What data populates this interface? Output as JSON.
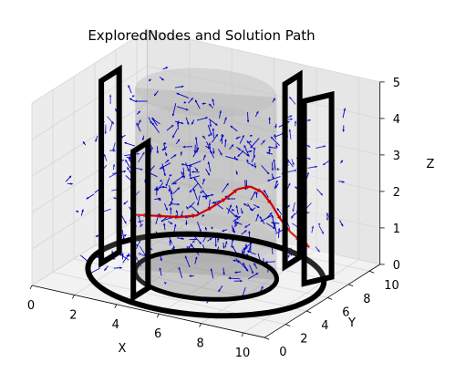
{
  "chart_data": {
    "type": "scatter3d",
    "title": "ExploredNodes and Solution Path",
    "xlabel": "X",
    "ylabel": "Y",
    "zlabel": "Z",
    "xlim": [
      0,
      11
    ],
    "ylim": [
      0,
      11
    ],
    "zlim": [
      0,
      5
    ],
    "xticks": [
      "0",
      "2",
      "4",
      "6",
      "8",
      "10"
    ],
    "yticks": [
      "0",
      "2",
      "4",
      "6",
      "8",
      "10"
    ],
    "zticks": [
      "0",
      "1",
      "2",
      "3",
      "4",
      "5"
    ],
    "grid": true,
    "colors": {
      "explored": "#0000cc",
      "solution": "#cc0000",
      "walls": "#000000",
      "cylinder": "#9a9a9a",
      "pane": "#ececec",
      "grid": "#d6d6d6"
    },
    "series": [
      {
        "kind": "quiver",
        "color_key": "explored",
        "description_free": true,
        "seed": 7,
        "count": 420,
        "x_range": [
          1.0,
          10.0
        ],
        "y_range": [
          1.0,
          10.0
        ],
        "z_range": [
          0.2,
          4.6
        ],
        "arrow_len": 0.45
      },
      {
        "kind": "quiver",
        "color_key": "solution",
        "points": [
          [
            2.0,
            5.5,
            1.2
          ],
          [
            2.7,
            5.6,
            1.25
          ],
          [
            3.4,
            5.7,
            1.3
          ],
          [
            4.1,
            5.8,
            1.35
          ],
          [
            4.8,
            6.0,
            1.45
          ],
          [
            5.4,
            6.3,
            1.7
          ],
          [
            5.9,
            6.6,
            1.95
          ],
          [
            6.3,
            6.9,
            2.2
          ],
          [
            6.8,
            7.1,
            2.3
          ],
          [
            7.3,
            7.2,
            2.2
          ],
          [
            7.8,
            7.1,
            1.95
          ],
          [
            8.3,
            7.0,
            1.6
          ],
          [
            8.8,
            6.9,
            1.35
          ],
          [
            9.3,
            6.8,
            1.2
          ],
          [
            9.8,
            6.7,
            1.1
          ]
        ]
      }
    ],
    "obstacles": {
      "cylinder": {
        "center": [
          5.5,
          5.5
        ],
        "radius": 3.0,
        "z": [
          0,
          5
        ]
      },
      "ring": {
        "center": [
          5.5,
          5.5
        ],
        "radius": 5.0,
        "z": 0
      },
      "panels": [
        {
          "x": [
            1.2,
            1.2
          ],
          "y": [
            4.2,
            5.9
          ],
          "z": [
            0,
            5
          ]
        },
        {
          "x": [
            4.2,
            4.2
          ],
          "y": [
            1.2,
            2.6
          ],
          "z": [
            0,
            4
          ]
        },
        {
          "x": [
            7.8,
            7.8
          ],
          "y": [
            8.4,
            9.8
          ],
          "z": [
            0,
            5
          ]
        },
        {
          "x": [
            9.4,
            10.0
          ],
          "y": [
            7.0,
            8.4
          ],
          "z": [
            0,
            5
          ]
        }
      ]
    }
  }
}
